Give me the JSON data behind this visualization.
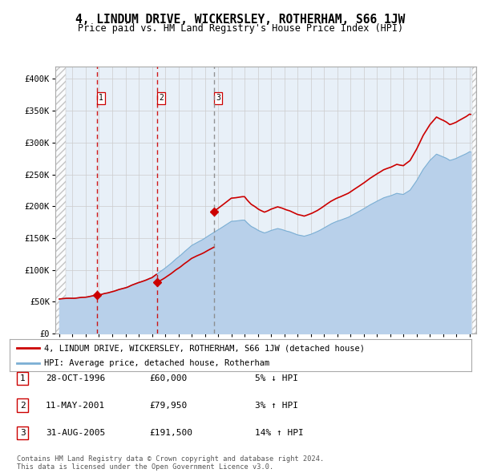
{
  "title": "4, LINDUM DRIVE, WICKERSLEY, ROTHERHAM, S66 1JW",
  "subtitle": "Price paid vs. HM Land Registry's House Price Index (HPI)",
  "xlim": [
    1993.7,
    2025.5
  ],
  "ylim": [
    0,
    420000
  ],
  "yticks": [
    0,
    50000,
    100000,
    150000,
    200000,
    250000,
    300000,
    350000,
    400000
  ],
  "ytick_labels": [
    "£0",
    "£50K",
    "£100K",
    "£150K",
    "£200K",
    "£250K",
    "£300K",
    "£350K",
    "£400K"
  ],
  "xticks": [
    1994,
    1995,
    1996,
    1997,
    1998,
    1999,
    2000,
    2001,
    2002,
    2003,
    2004,
    2005,
    2006,
    2007,
    2008,
    2009,
    2010,
    2011,
    2012,
    2013,
    2014,
    2015,
    2016,
    2017,
    2018,
    2019,
    2020,
    2021,
    2022,
    2023,
    2024,
    2025
  ],
  "hpi_color": "#b8d0ea",
  "hpi_line_color": "#7bafd4",
  "price_color": "#cc0000",
  "marker_color": "#cc0000",
  "grid_color": "#cccccc",
  "background_plot": "#e8f0f8",
  "sale_dates": [
    1996.83,
    2001.37,
    2005.67
  ],
  "sale_prices": [
    60000,
    79950,
    191500
  ],
  "sale_labels": [
    "1",
    "2",
    "3"
  ],
  "vline_colors": [
    "#cc0000",
    "#cc0000",
    "#888888"
  ],
  "vline_styles": [
    "--",
    "--",
    "--"
  ],
  "legend_line1": "4, LINDUM DRIVE, WICKERSLEY, ROTHERHAM, S66 1JW (detached house)",
  "legend_line2": "HPI: Average price, detached house, Rotherham",
  "table_data": [
    [
      "1",
      "28-OCT-1996",
      "£60,000",
      "5% ↓ HPI"
    ],
    [
      "2",
      "11-MAY-2001",
      "£79,950",
      "3% ↑ HPI"
    ],
    [
      "3",
      "31-AUG-2005",
      "£191,500",
      "14% ↑ HPI"
    ]
  ],
  "footnote1": "Contains HM Land Registry data © Crown copyright and database right 2024.",
  "footnote2": "This data is licensed under the Open Government Licence v3.0."
}
